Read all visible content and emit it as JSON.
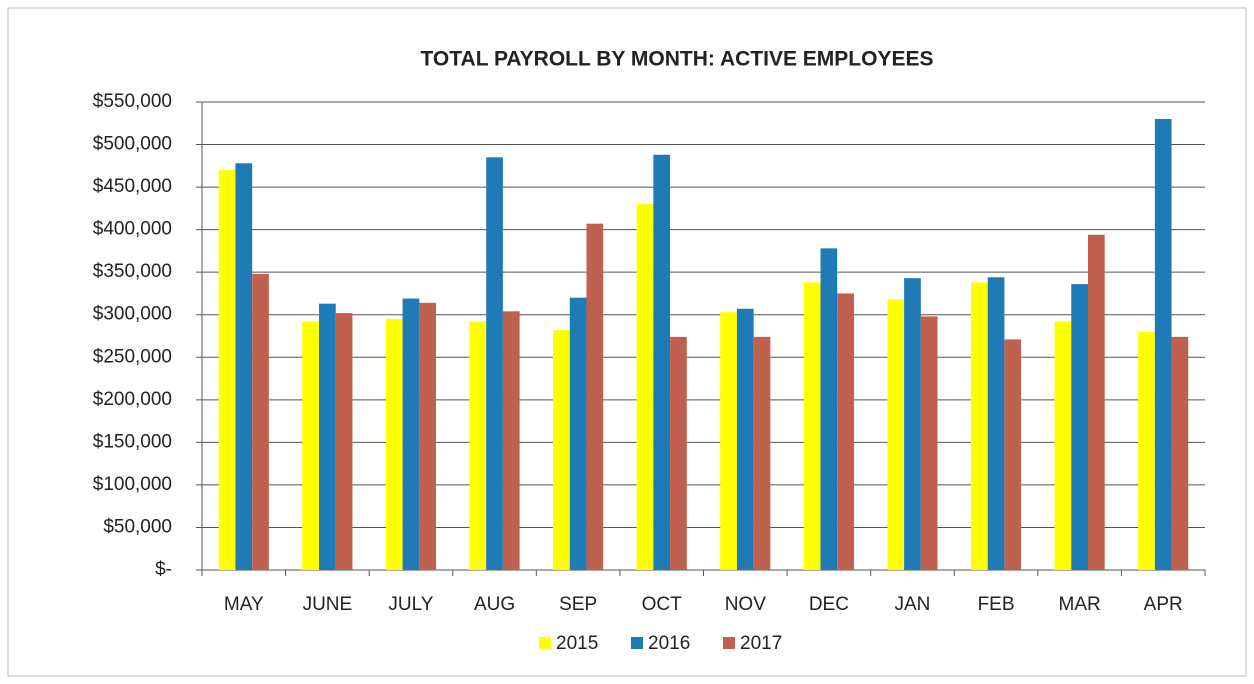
{
  "chart_data": {
    "type": "bar",
    "title": "TOTAL PAYROLL BY MONTH: ACTIVE EMPLOYEES",
    "categories": [
      "MAY",
      "JUNE",
      "JULY",
      "AUG",
      "SEP",
      "OCT",
      "NOV",
      "DEC",
      "JAN",
      "FEB",
      "MAR",
      "APR"
    ],
    "series": [
      {
        "name": "2015",
        "color": "#ffff00",
        "values": [
          470000,
          292000,
          295000,
          292000,
          282000,
          430000,
          303000,
          338000,
          318000,
          338000,
          292000,
          280000
        ]
      },
      {
        "name": "2016",
        "color": "#1f7bb5",
        "values": [
          478000,
          313000,
          319000,
          485000,
          320000,
          488000,
          307000,
          378000,
          343000,
          344000,
          336000,
          530000
        ]
      },
      {
        "name": "2017",
        "color": "#c0614f",
        "values": [
          348000,
          302000,
          314000,
          304000,
          407000,
          274000,
          274000,
          325000,
          298000,
          271000,
          394000,
          274000
        ]
      }
    ],
    "ylim": [
      0,
      550000
    ],
    "yticks": [
      {
        "value": 0,
        "label": "$-"
      },
      {
        "value": 50000,
        "label": "$50,000"
      },
      {
        "value": 100000,
        "label": "$100,000"
      },
      {
        "value": 150000,
        "label": "$150,000"
      },
      {
        "value": 200000,
        "label": "$200,000"
      },
      {
        "value": 250000,
        "label": "$250,000"
      },
      {
        "value": 300000,
        "label": "$300,000"
      },
      {
        "value": 350000,
        "label": "$350,000"
      },
      {
        "value": 400000,
        "label": "$400,000"
      },
      {
        "value": 450000,
        "label": "$450,000"
      },
      {
        "value": 500000,
        "label": "$500,000"
      },
      {
        "value": 550000,
        "label": "$550,000"
      }
    ],
    "grid": true,
    "legend": "bottom"
  }
}
